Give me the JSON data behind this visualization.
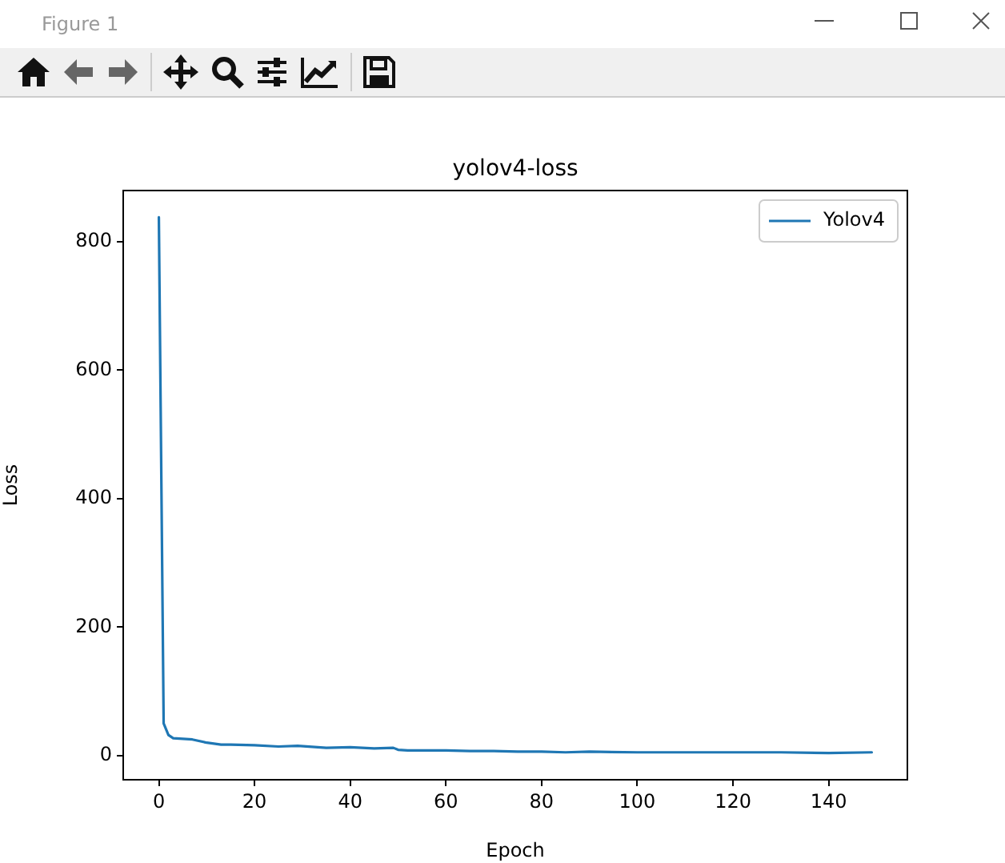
{
  "chart_data": {
    "type": "line",
    "title": "yolov4-loss",
    "xlabel": "Epoch",
    "ylabel": "Loss",
    "annotations": [
      "Figure 1"
    ],
    "x": [
      0,
      1,
      2,
      3,
      5,
      7,
      10,
      13,
      15,
      20,
      25,
      29,
      35,
      40,
      45,
      49,
      50,
      52,
      60,
      65,
      70,
      75,
      80,
      85,
      90,
      100,
      110,
      120,
      130,
      140,
      149
    ],
    "series": [
      {
        "name": "Yolov4",
        "color": "#1f77b4",
        "values": [
          838,
          50,
          32,
          27,
          26,
          25,
          20,
          17,
          17,
          16,
          14,
          15,
          12,
          13,
          11,
          12,
          9,
          8,
          8,
          7,
          7,
          6,
          6,
          5,
          6,
          5,
          5,
          5,
          5,
          4,
          5
        ]
      }
    ],
    "xlim": [
      -7.45,
      156.45
    ],
    "xticks": [
      0,
      20,
      40,
      60,
      80,
      100,
      120,
      140
    ],
    "ylim": [
      -37.7,
      879.7
    ],
    "yticks": [
      0,
      200,
      400,
      600,
      800
    ],
    "grid": false,
    "legend": "top right",
    "marker": "none",
    "line_style": "solid"
  }
}
